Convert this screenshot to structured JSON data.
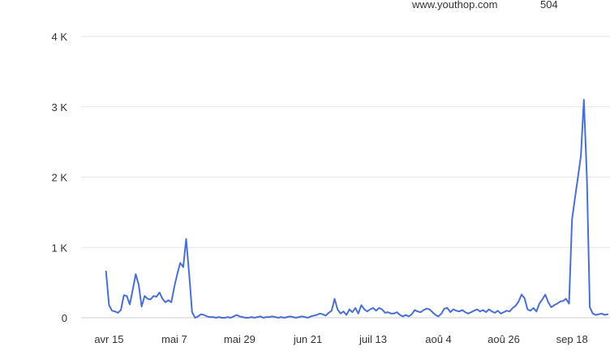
{
  "tooltip": {
    "row_label": "www.youthop.com",
    "row_value": "504"
  },
  "colors": {
    "line": "#4a6fd4",
    "grid": "#e6e6e6",
    "axis": "#cccccc",
    "text": "#333333"
  },
  "chart_data": {
    "type": "line",
    "title": "",
    "xlabel": "",
    "ylabel": "",
    "grid": true,
    "ylim": [
      0,
      4000
    ],
    "yticks": [
      0,
      1000,
      2000,
      3000,
      4000
    ],
    "ytick_labels": [
      "0",
      "1 K",
      "2 K",
      "3 K",
      "4 K"
    ],
    "xticks": [
      {
        "day": 15,
        "label": "avr 15"
      },
      {
        "day": 37,
        "label": "mai 7"
      },
      {
        "day": 59,
        "label": "mai 29"
      },
      {
        "day": 82,
        "label": "jun 21"
      },
      {
        "day": 104,
        "label": "juil 13"
      },
      {
        "day": 126,
        "label": "aoû 4"
      },
      {
        "day": 148,
        "label": "aoû 26"
      },
      {
        "day": 171,
        "label": "sep 18"
      }
    ],
    "xlim": [
      5.6,
      183.8
    ],
    "series": [
      {
        "values": [
          [
            14,
            660
          ],
          [
            15,
            180
          ],
          [
            16,
            100
          ],
          [
            17,
            90
          ],
          [
            18,
            70
          ],
          [
            19,
            110
          ],
          [
            20,
            320
          ],
          [
            21,
            310
          ],
          [
            22,
            190
          ],
          [
            23,
            400
          ],
          [
            24,
            620
          ],
          [
            25,
            470
          ],
          [
            26,
            160
          ],
          [
            27,
            310
          ],
          [
            28,
            270
          ],
          [
            29,
            260
          ],
          [
            30,
            310
          ],
          [
            31,
            300
          ],
          [
            32,
            360
          ],
          [
            33,
            270
          ],
          [
            34,
            220
          ],
          [
            35,
            250
          ],
          [
            36,
            220
          ],
          [
            37,
            440
          ],
          [
            38,
            620
          ],
          [
            39,
            780
          ],
          [
            40,
            720
          ],
          [
            41,
            1120
          ],
          [
            42,
            620
          ],
          [
            43,
            80
          ],
          [
            44,
            0
          ],
          [
            45,
            20
          ],
          [
            46,
            50
          ],
          [
            47,
            40
          ],
          [
            48,
            20
          ],
          [
            49,
            10
          ],
          [
            50,
            10
          ],
          [
            51,
            0
          ],
          [
            52,
            10
          ],
          [
            53,
            0
          ],
          [
            54,
            0
          ],
          [
            55,
            10
          ],
          [
            56,
            0
          ],
          [
            57,
            20
          ],
          [
            58,
            40
          ],
          [
            59,
            20
          ],
          [
            60,
            10
          ],
          [
            61,
            0
          ],
          [
            62,
            0
          ],
          [
            63,
            10
          ],
          [
            64,
            0
          ],
          [
            65,
            10
          ],
          [
            66,
            20
          ],
          [
            67,
            0
          ],
          [
            68,
            10
          ],
          [
            69,
            10
          ],
          [
            70,
            20
          ],
          [
            71,
            10
          ],
          [
            72,
            0
          ],
          [
            73,
            10
          ],
          [
            74,
            0
          ],
          [
            75,
            10
          ],
          [
            76,
            20
          ],
          [
            77,
            10
          ],
          [
            78,
            0
          ],
          [
            79,
            10
          ],
          [
            80,
            20
          ],
          [
            81,
            10
          ],
          [
            82,
            0
          ],
          [
            83,
            20
          ],
          [
            84,
            30
          ],
          [
            85,
            40
          ],
          [
            86,
            60
          ],
          [
            87,
            50
          ],
          [
            88,
            30
          ],
          [
            89,
            70
          ],
          [
            90,
            100
          ],
          [
            91,
            270
          ],
          [
            92,
            120
          ],
          [
            93,
            60
          ],
          [
            94,
            90
          ],
          [
            95,
            40
          ],
          [
            96,
            120
          ],
          [
            97,
            80
          ],
          [
            98,
            140
          ],
          [
            99,
            60
          ],
          [
            100,
            180
          ],
          [
            101,
            120
          ],
          [
            102,
            90
          ],
          [
            103,
            120
          ],
          [
            104,
            140
          ],
          [
            105,
            100
          ],
          [
            106,
            140
          ],
          [
            107,
            120
          ],
          [
            108,
            70
          ],
          [
            109,
            80
          ],
          [
            110,
            60
          ],
          [
            111,
            60
          ],
          [
            112,
            80
          ],
          [
            113,
            40
          ],
          [
            114,
            20
          ],
          [
            115,
            40
          ],
          [
            116,
            20
          ],
          [
            117,
            50
          ],
          [
            118,
            110
          ],
          [
            119,
            90
          ],
          [
            120,
            80
          ],
          [
            121,
            110
          ],
          [
            122,
            130
          ],
          [
            123,
            120
          ],
          [
            124,
            80
          ],
          [
            125,
            40
          ],
          [
            126,
            20
          ],
          [
            127,
            60
          ],
          [
            128,
            130
          ],
          [
            129,
            140
          ],
          [
            130,
            80
          ],
          [
            131,
            120
          ],
          [
            132,
            100
          ],
          [
            133,
            90
          ],
          [
            134,
            110
          ],
          [
            135,
            80
          ],
          [
            136,
            60
          ],
          [
            137,
            80
          ],
          [
            138,
            100
          ],
          [
            139,
            120
          ],
          [
            140,
            90
          ],
          [
            141,
            110
          ],
          [
            142,
            80
          ],
          [
            143,
            120
          ],
          [
            144,
            90
          ],
          [
            145,
            70
          ],
          [
            146,
            100
          ],
          [
            147,
            60
          ],
          [
            148,
            80
          ],
          [
            149,
            100
          ],
          [
            150,
            90
          ],
          [
            151,
            140
          ],
          [
            152,
            170
          ],
          [
            153,
            230
          ],
          [
            154,
            330
          ],
          [
            155,
            280
          ],
          [
            156,
            120
          ],
          [
            157,
            100
          ],
          [
            158,
            140
          ],
          [
            159,
            90
          ],
          [
            160,
            200
          ],
          [
            161,
            260
          ],
          [
            162,
            330
          ],
          [
            163,
            220
          ],
          [
            164,
            150
          ],
          [
            165,
            180
          ],
          [
            166,
            200
          ],
          [
            167,
            230
          ],
          [
            168,
            240
          ],
          [
            169,
            270
          ],
          [
            170,
            200
          ],
          [
            171,
            1400
          ],
          [
            172,
            1700
          ],
          [
            173,
            2000
          ],
          [
            174,
            2300
          ],
          [
            175,
            3100
          ],
          [
            176,
            2000
          ],
          [
            177,
            150
          ],
          [
            178,
            60
          ],
          [
            179,
            40
          ],
          [
            180,
            50
          ],
          [
            181,
            60
          ],
          [
            182,
            40
          ],
          [
            183,
            50
          ]
        ]
      }
    ]
  }
}
